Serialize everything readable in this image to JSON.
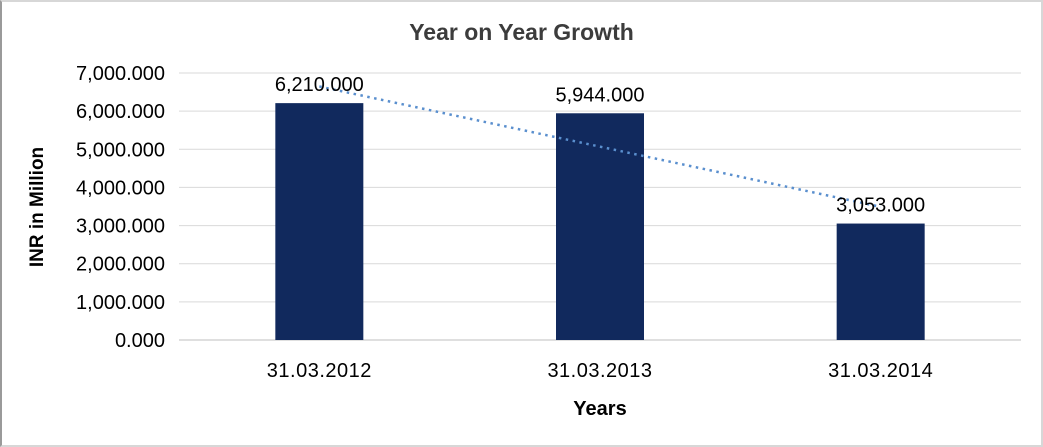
{
  "chart_data": {
    "type": "bar",
    "title": "Year on Year Growth",
    "xlabel": "Years",
    "ylabel": "INR in Million",
    "categories": [
      "31.03.2012",
      "31.03.2013",
      "31.03.2014"
    ],
    "values": [
      6210.0,
      5944.0,
      3053.0
    ],
    "value_labels": [
      "6,210.000",
      "5,944.000",
      "3,053.000"
    ],
    "ylim": [
      0,
      7000
    ],
    "ytick_step": 1000,
    "ytick_labels": [
      "0.000",
      "1,000.000",
      "2,000.000",
      "3,000.000",
      "4,000.000",
      "5,000.000",
      "6,000.000",
      "7,000.000"
    ],
    "grid": true,
    "legend": "none",
    "trendline": {
      "type": "linear",
      "style": "dotted"
    },
    "colors": {
      "bar": "#11295d",
      "trendline": "#5a8fce",
      "gridline": "#d9d9d9",
      "axis_line": "#bfbfbf",
      "title_text": "#3c3c3c",
      "label_text": "#000000"
    }
  }
}
